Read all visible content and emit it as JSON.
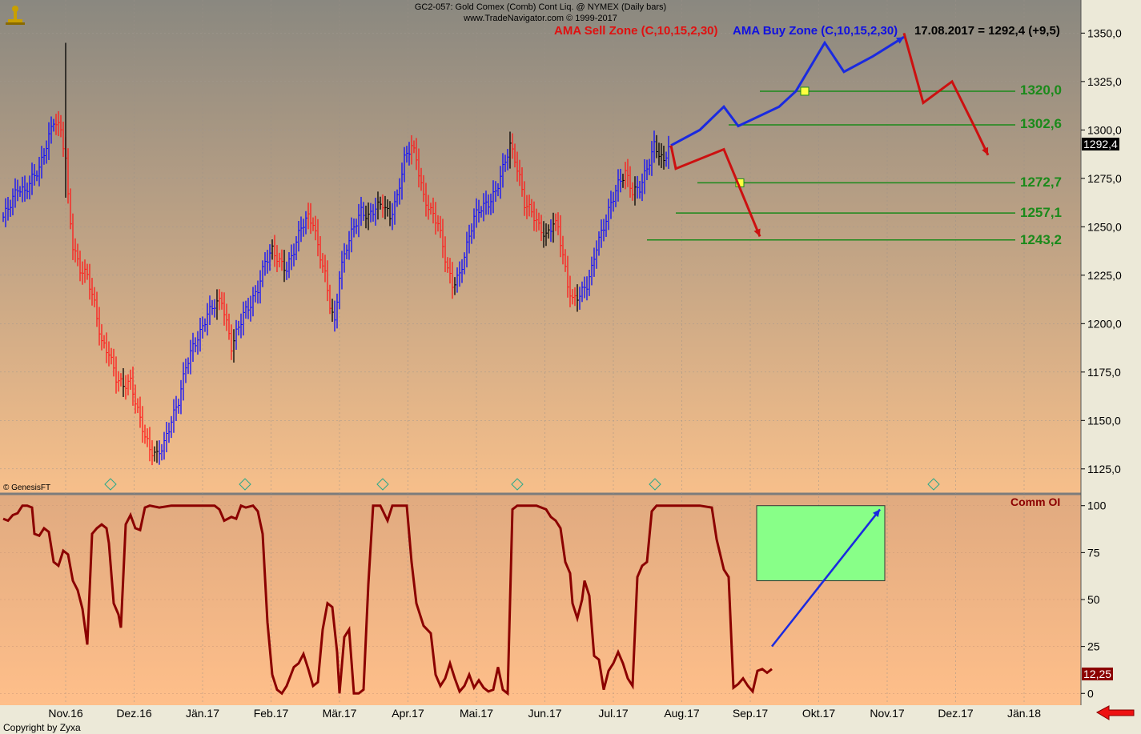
{
  "header": {
    "line1": "GC2-057:  Gold Comex (Comb) Cont Liq. @ NYMEX  (Daily bars)",
    "line2": "www.TradeNavigator.com © 1999-2017"
  },
  "legend": {
    "sell_zone": "AMA Sell Zone (C,10,15,2,30)",
    "buy_zone": "AMA Buy Zone (C,10,15,2,30)",
    "last_quote": "17.08.2017 = 1292,4 (+9,5)"
  },
  "colors": {
    "bull": "#0a0aff",
    "bear": "#ff1a1a",
    "neutral": "#000000",
    "level_line": "#1a8a1a",
    "indicator_line": "#8b0000",
    "target_box": "#88ff88",
    "forecast_up": "#1a2ae0",
    "forecast_down": "#cc1010"
  },
  "price_box": "1292,4",
  "indicator_box": "12,25",
  "indicator_label": "Comm OI",
  "genesis_label": "© GenesisFT",
  "copyright": "Copyright by Zyxa",
  "chart_data": [
    {
      "type": "ohlc",
      "ylim": [
        1115,
        1358
      ],
      "yticks": [
        "1350,0",
        "1325,0",
        "1300,0",
        "1275,0",
        "1250,0",
        "1225,0",
        "1200,0",
        "1175,0",
        "1150,0",
        "1125,0"
      ],
      "ytick_values": [
        1350,
        1325,
        1300,
        1275,
        1250,
        1225,
        1200,
        1175,
        1150,
        1125
      ],
      "xticks": [
        "Nov.16",
        "Dez.16",
        "Jän.17",
        "Feb.17",
        "Mär.17",
        "Apr.17",
        "Mai.17",
        "Jun.17",
        "Jul.17",
        "Aug.17",
        "Sep.17",
        "Okt.17",
        "Nov.17",
        "Dez.17",
        "Jän.18"
      ],
      "levels": [
        {
          "label": "1320,0",
          "value": 1320.0
        },
        {
          "label": "1302,6",
          "value": 1302.6
        },
        {
          "label": "1272,7",
          "value": 1272.7
        },
        {
          "label": "1257,1",
          "value": 1257.1
        },
        {
          "label": "1243,2",
          "value": 1243.2
        }
      ],
      "close_path": [
        [
          0,
          1255
        ],
        [
          3,
          1262
        ],
        [
          6,
          1270
        ],
        [
          9,
          1268
        ],
        [
          12,
          1275
        ],
        [
          15,
          1280
        ],
        [
          18,
          1292
        ],
        [
          21,
          1305
        ],
        [
          24,
          1300
        ],
        [
          26,
          1285
        ],
        [
          27,
          1265
        ],
        [
          29,
          1240
        ],
        [
          32,
          1228
        ],
        [
          35,
          1225
        ],
        [
          38,
          1210
        ],
        [
          41,
          1190
        ],
        [
          44,
          1185
        ],
        [
          47,
          1172
        ],
        [
          50,
          1168
        ],
        [
          53,
          1170
        ],
        [
          56,
          1155
        ],
        [
          59,
          1142
        ],
        [
          61,
          1135
        ],
        [
          64,
          1132
        ],
        [
          67,
          1138
        ],
        [
          70,
          1150
        ],
        [
          73,
          1160
        ],
        [
          76,
          1178
        ],
        [
          79,
          1188
        ],
        [
          82,
          1195
        ],
        [
          85,
          1205
        ],
        [
          88,
          1210
        ],
        [
          91,
          1212
        ],
        [
          93,
          1200
        ],
        [
          95,
          1188
        ],
        [
          97,
          1195
        ],
        [
          100,
          1205
        ],
        [
          103,
          1210
        ],
        [
          106,
          1218
        ],
        [
          109,
          1232
        ],
        [
          112,
          1238
        ],
        [
          115,
          1232
        ],
        [
          118,
          1228
        ],
        [
          121,
          1238
        ],
        [
          124,
          1250
        ],
        [
          127,
          1255
        ],
        [
          129,
          1252
        ],
        [
          131,
          1240
        ],
        [
          134,
          1225
        ],
        [
          136,
          1210
        ],
        [
          138,
          1200
        ],
        [
          140,
          1225
        ],
        [
          143,
          1240
        ],
        [
          146,
          1250
        ],
        [
          149,
          1258
        ],
        [
          152,
          1255
        ],
        [
          155,
          1260
        ],
        [
          158,
          1262
        ],
        [
          161,
          1255
        ],
        [
          164,
          1265
        ],
        [
          167,
          1285
        ],
        [
          170,
          1292
        ],
        [
          172,
          1285
        ],
        [
          175,
          1265
        ],
        [
          178,
          1258
        ],
        [
          181,
          1252
        ],
        [
          183,
          1240
        ],
        [
          185,
          1228
        ],
        [
          187,
          1220
        ],
        [
          190,
          1225
        ],
        [
          193,
          1240
        ],
        [
          196,
          1255
        ],
        [
          199,
          1260
        ],
        [
          202,
          1262
        ],
        [
          205,
          1268
        ],
        [
          208,
          1280
        ],
        [
          211,
          1292
        ],
        [
          213,
          1285
        ],
        [
          215,
          1275
        ],
        [
          217,
          1262
        ],
        [
          220,
          1258
        ],
        [
          223,
          1250
        ],
        [
          226,
          1245
        ],
        [
          229,
          1252
        ],
        [
          231,
          1250
        ],
        [
          233,
          1235
        ],
        [
          235,
          1220
        ],
        [
          237,
          1212
        ],
        [
          240,
          1215
        ],
        [
          243,
          1220
        ],
        [
          245,
          1228
        ],
        [
          247,
          1240
        ],
        [
          250,
          1250
        ],
        [
          253,
          1262
        ],
        [
          256,
          1272
        ],
        [
          259,
          1278
        ],
        [
          262,
          1268
        ],
        [
          265,
          1270
        ],
        [
          268,
          1280
        ],
        [
          271,
          1292
        ],
        [
          273,
          1288
        ],
        [
          275,
          1283
        ],
        [
          277,
          1292
        ]
      ],
      "total_days": 335,
      "forecast_up": [
        [
          [
            1292,
            278
          ],
          [
            1300,
            290
          ],
          [
            1312,
            300
          ],
          [
            1302,
            306
          ],
          [
            1312,
            323
          ],
          [
            1320,
            330
          ],
          [
            1345,
            342
          ],
          [
            1330,
            350
          ],
          [
            1338,
            362
          ],
          [
            1348,
            375
          ]
        ]
      ],
      "forecast_down_a": [
        [
          1292,
          278
        ],
        [
          1280,
          280
        ],
        [
          1285,
          290
        ],
        [
          1290,
          300
        ],
        [
          1245,
          315
        ]
      ],
      "forecast_down_b": [
        [
          1350,
          375
        ],
        [
          1314,
          383
        ],
        [
          1325,
          395
        ],
        [
          1300,
          405
        ],
        [
          1287,
          410
        ]
      ]
    },
    {
      "type": "line",
      "name": "Comm OI",
      "ylim": [
        -5,
        105
      ],
      "yticks": [
        "100",
        "75",
        "50",
        "25",
        "0"
      ],
      "ytick_values": [
        100,
        75,
        50,
        25,
        0
      ],
      "values": [
        [
          0,
          93
        ],
        [
          2,
          92
        ],
        [
          4,
          95
        ],
        [
          6,
          96
        ],
        [
          8,
          100
        ],
        [
          10,
          100
        ],
        [
          12,
          99
        ],
        [
          13,
          85
        ],
        [
          15,
          84
        ],
        [
          17,
          88
        ],
        [
          19,
          86
        ],
        [
          21,
          70
        ],
        [
          23,
          68
        ],
        [
          25,
          76
        ],
        [
          27,
          74
        ],
        [
          29,
          60
        ],
        [
          31,
          55
        ],
        [
          33,
          45
        ],
        [
          35,
          26
        ],
        [
          37,
          85
        ],
        [
          39,
          88
        ],
        [
          41,
          90
        ],
        [
          43,
          88
        ],
        [
          44,
          80
        ],
        [
          46,
          48
        ],
        [
          48,
          42
        ],
        [
          49,
          35
        ],
        [
          51,
          90
        ],
        [
          53,
          95
        ],
        [
          55,
          88
        ],
        [
          57,
          87
        ],
        [
          59,
          99
        ],
        [
          61,
          100
        ],
        [
          65,
          99
        ],
        [
          70,
          100
        ],
        [
          80,
          100
        ],
        [
          88,
          100
        ],
        [
          90,
          98
        ],
        [
          92,
          92
        ],
        [
          95,
          94
        ],
        [
          97,
          93
        ],
        [
          99,
          100
        ],
        [
          101,
          99
        ],
        [
          104,
          100
        ],
        [
          106,
          97
        ],
        [
          108,
          85
        ],
        [
          110,
          38
        ],
        [
          112,
          10
        ],
        [
          114,
          2
        ],
        [
          116,
          0
        ],
        [
          118,
          4
        ],
        [
          121,
          14
        ],
        [
          123,
          16
        ],
        [
          125,
          21
        ],
        [
          127,
          13
        ],
        [
          129,
          4
        ],
        [
          131,
          6
        ],
        [
          133,
          34
        ],
        [
          135,
          48
        ],
        [
          137,
          46
        ],
        [
          139,
          22
        ],
        [
          140,
          0
        ],
        [
          142,
          30
        ],
        [
          144,
          34
        ],
        [
          146,
          0
        ],
        [
          148,
          0
        ],
        [
          150,
          2
        ],
        [
          152,
          58
        ],
        [
          154,
          100
        ],
        [
          157,
          100
        ],
        [
          160,
          92
        ],
        [
          162,
          100
        ],
        [
          166,
          100
        ],
        [
          168,
          100
        ],
        [
          170,
          70
        ],
        [
          172,
          48
        ],
        [
          175,
          36
        ],
        [
          178,
          32
        ],
        [
          180,
          10
        ],
        [
          182,
          4
        ],
        [
          184,
          8
        ],
        [
          186,
          16
        ],
        [
          188,
          8
        ],
        [
          190,
          1
        ],
        [
          192,
          4
        ],
        [
          194,
          10
        ],
        [
          196,
          3
        ],
        [
          198,
          7
        ],
        [
          200,
          3
        ],
        [
          202,
          1
        ],
        [
          204,
          2
        ],
        [
          206,
          14
        ],
        [
          208,
          2
        ],
        [
          210,
          0
        ],
        [
          212,
          98
        ],
        [
          214,
          100
        ],
        [
          218,
          100
        ],
        [
          222,
          100
        ],
        [
          226,
          98
        ],
        [
          228,
          94
        ],
        [
          230,
          92
        ],
        [
          232,
          88
        ],
        [
          234,
          70
        ],
        [
          236,
          64
        ],
        [
          237,
          48
        ],
        [
          239,
          40
        ],
        [
          241,
          50
        ],
        [
          242,
          60
        ],
        [
          244,
          52
        ],
        [
          246,
          20
        ],
        [
          248,
          18
        ],
        [
          250,
          2
        ],
        [
          252,
          12
        ],
        [
          254,
          16
        ],
        [
          256,
          22
        ],
        [
          258,
          16
        ],
        [
          260,
          8
        ],
        [
          262,
          4
        ],
        [
          264,
          62
        ],
        [
          266,
          68
        ],
        [
          268,
          70
        ],
        [
          270,
          97
        ],
        [
          272,
          100
        ],
        [
          280,
          100
        ],
        [
          290,
          100
        ],
        [
          295,
          99
        ],
        [
          297,
          82
        ],
        [
          300,
          66
        ],
        [
          302,
          62
        ],
        [
          304,
          3
        ],
        [
          306,
          5
        ],
        [
          308,
          8
        ],
        [
          310,
          4
        ],
        [
          312,
          1
        ],
        [
          314,
          12
        ],
        [
          316,
          13
        ],
        [
          318,
          11
        ],
        [
          320,
          13
        ]
      ],
      "target_zone": [
        60,
        100
      ],
      "forecast_arrow": [
        [
          25,
          320
        ],
        [
          98,
          365
        ]
      ]
    }
  ]
}
